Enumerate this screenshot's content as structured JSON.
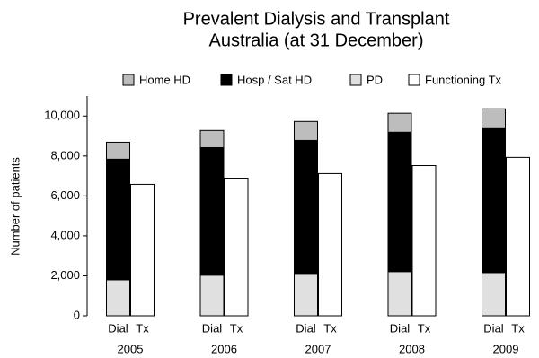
{
  "chart_data": {
    "type": "stacked-bar",
    "title": [
      "Prevalent Dialysis and Transplant",
      "Australia (at 31 December)"
    ],
    "y_label": "Number of patients",
    "categories": [
      "2005",
      "2006",
      "2007",
      "2008",
      "2009"
    ],
    "stacks": [
      "Dial",
      "Tx"
    ],
    "series": [
      {
        "name": "Home HD",
        "color": "#bdbdbd",
        "stack": "Dial",
        "values": [
          850,
          860,
          950,
          950,
          990
        ]
      },
      {
        "name": "Hosp / Sat HD",
        "color": "#000000",
        "stack": "Dial",
        "values": [
          6040,
          6390,
          6660,
          6980,
          7210
        ]
      },
      {
        "name": "PD",
        "color": "#e0e0e0",
        "stack": "Dial",
        "values": [
          1800,
          2030,
          2120,
          2210,
          2160
        ]
      },
      {
        "name": "Functioning Tx",
        "color": "#ffffff",
        "stack": "Tx",
        "values": [
          6580,
          6890,
          7120,
          7520,
          7930
        ]
      }
    ],
    "ylim": [
      0,
      11000
    ],
    "yticks": [
      0,
      {
        "value": 2000,
        "label": "2,000"
      },
      {
        "value": 4000,
        "label": "4,000"
      },
      {
        "value": 6000,
        "label": "6,000"
      },
      {
        "value": 8000,
        "label": "8,000"
      },
      {
        "value": 10000,
        "label": "10,000"
      }
    ],
    "legend": "top"
  }
}
